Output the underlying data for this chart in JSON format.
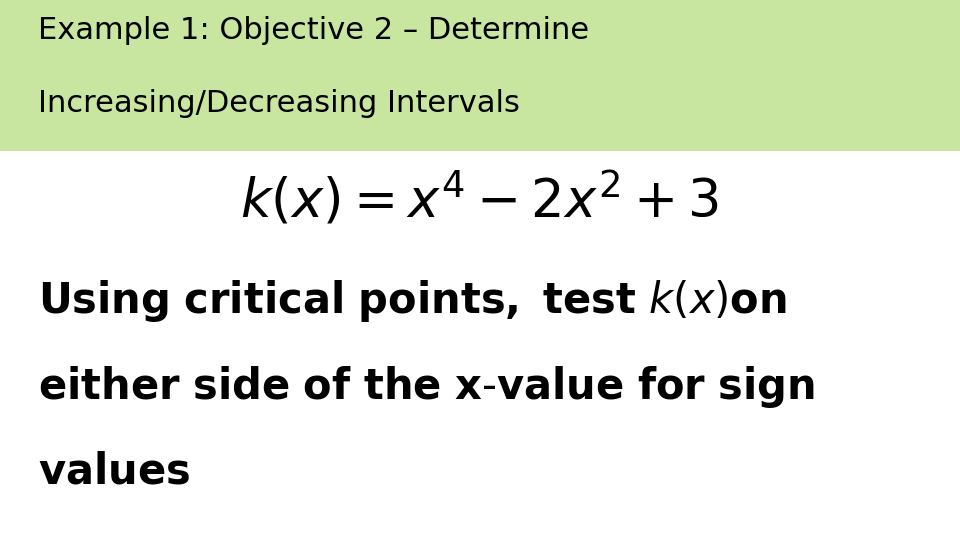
{
  "title_line1": "Example 1: Objective 2 – Determine",
  "title_line2": "Increasing/Decreasing Intervals",
  "title_bg_color": "#c8e6a0",
  "title_fontsize": 22,
  "title_text_color": "#000000",
  "equation_latex": "$k(x) = x^{4} -2x^{2} + 3$",
  "equation_fontsize": 38,
  "body_fontsize": 30,
  "body_text_color": "#000000",
  "background_color": "#ffffff",
  "fig_width": 9.6,
  "fig_height": 5.4
}
